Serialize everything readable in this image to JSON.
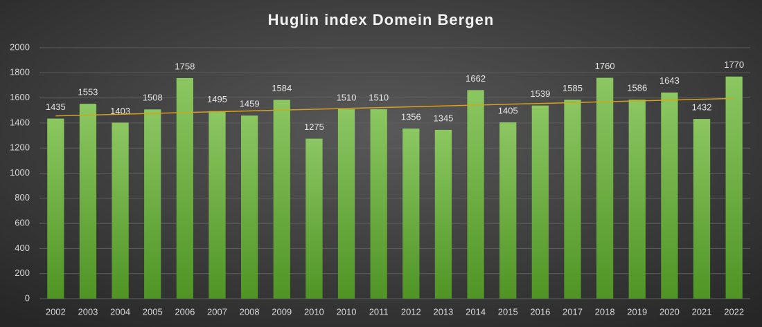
{
  "chart_data": {
    "type": "bar",
    "title": "Huglin index Domein Bergen",
    "categories": [
      "2002",
      "2003",
      "2004",
      "2005",
      "2006",
      "2007",
      "2008",
      "2009",
      "2010",
      "2010",
      "2011",
      "2012",
      "2013",
      "2014",
      "2015",
      "2016",
      "2017",
      "2018",
      "2019",
      "2020",
      "2021",
      "2022"
    ],
    "values": [
      1435,
      1553,
      1403,
      1508,
      1758,
      1495,
      1459,
      1584,
      1275,
      1510,
      1510,
      1356,
      1345,
      1662,
      1405,
      1539,
      1585,
      1760,
      1586,
      1643,
      1432,
      1770
    ],
    "color": "#70ad47",
    "ylim": [
      0,
      2000
    ],
    "yticks": [
      0,
      200,
      400,
      600,
      800,
      1000,
      1200,
      1400,
      1600,
      1800,
      2000
    ],
    "grid": true,
    "trendline": true,
    "trendline_color": "#d6a21e"
  }
}
